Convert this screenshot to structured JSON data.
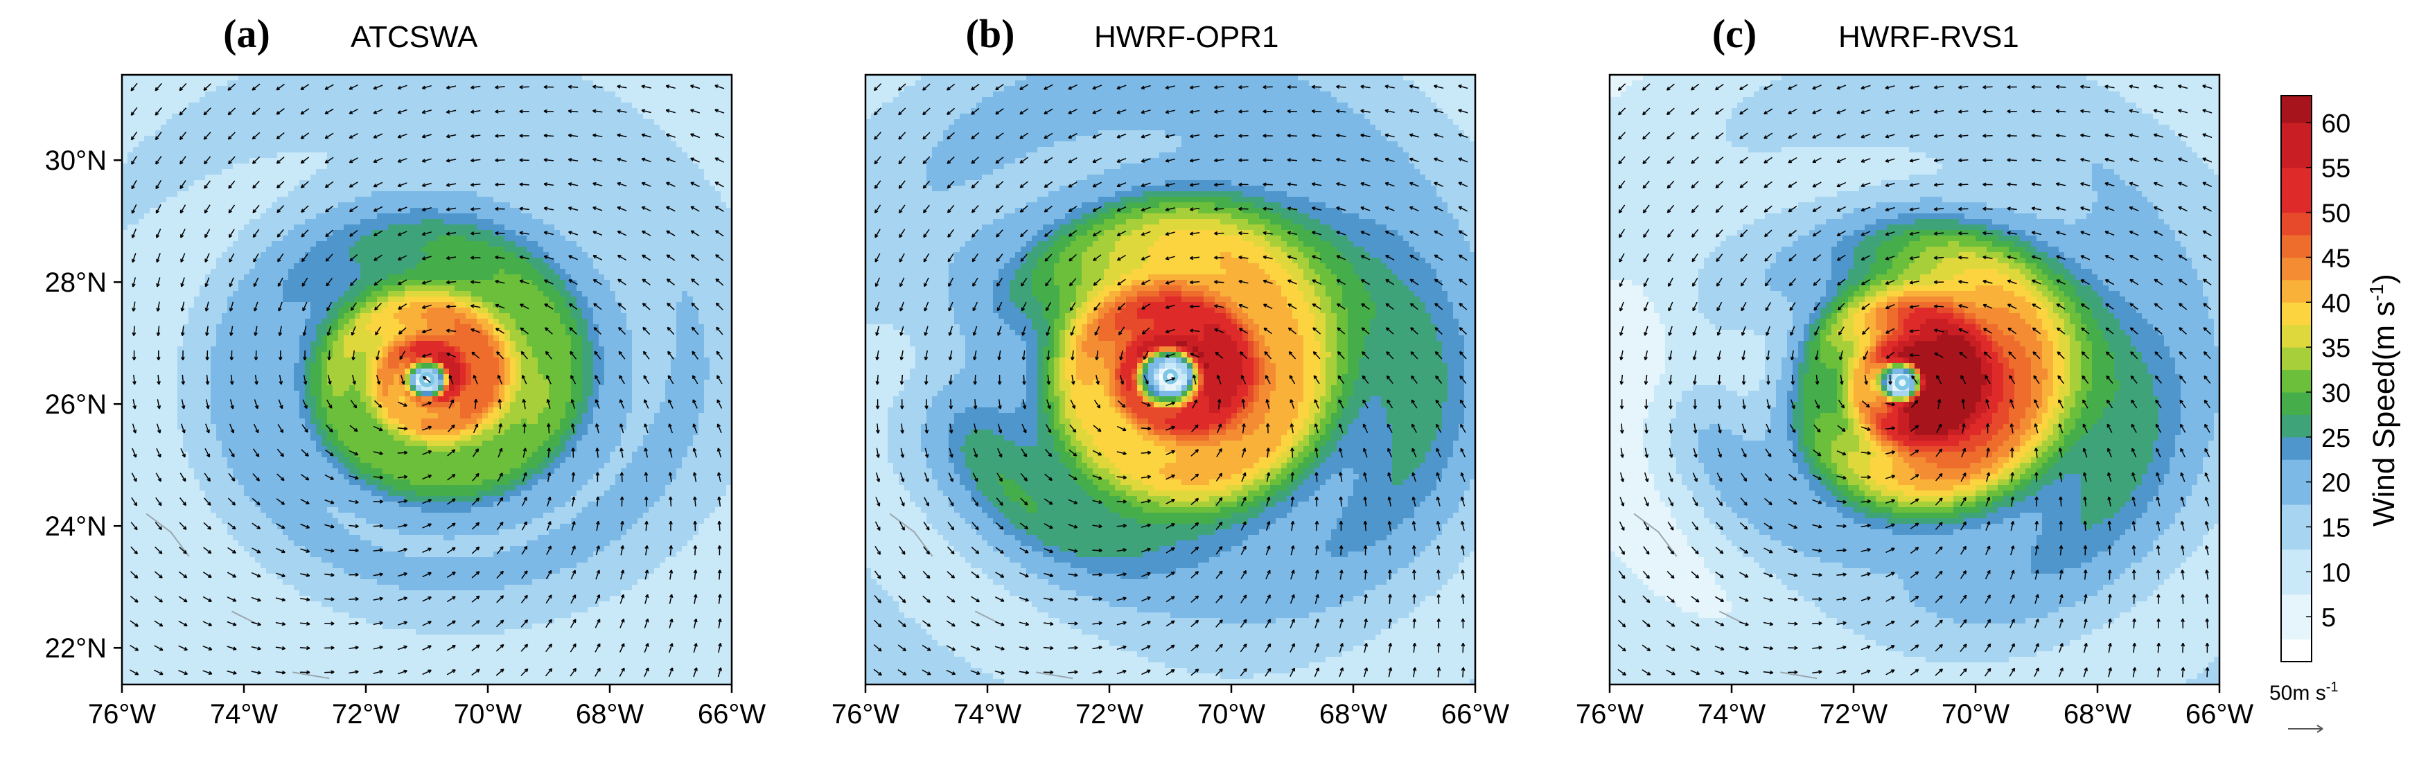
{
  "chart_data": [
    {
      "type": "heatmap",
      "panel_letter": "(a)",
      "title": "ATCSWA",
      "xlim": [
        -76,
        -66
      ],
      "ylim": [
        21.4,
        31.4
      ],
      "x_ticks": [
        "76°W",
        "74°W",
        "72°W",
        "70°W",
        "68°W",
        "66°W"
      ],
      "y_ticks": [
        "30°N",
        "28°N",
        "26°N",
        "24°N",
        "22°N"
      ],
      "storm_center": {
        "lon": -71.0,
        "lat": 26.4
      },
      "max_wind": 50,
      "radius_of_max_wind_deg": 0.35,
      "inner_core_extent_deg": 1.9
    },
    {
      "type": "heatmap",
      "panel_letter": "(b)",
      "title": "HWRF-OPR1",
      "xlim": [
        -76,
        -66
      ],
      "ylim": [
        21.4,
        31.4
      ],
      "x_ticks": [
        "76°W",
        "74°W",
        "72°W",
        "70°W",
        "68°W",
        "66°W"
      ],
      "y_ticks": [],
      "storm_center": {
        "lon": -71.0,
        "lat": 26.45
      },
      "max_wind": 55,
      "radius_of_max_wind_deg": 0.55,
      "inner_core_extent_deg": 2.4
    },
    {
      "type": "heatmap",
      "panel_letter": "(c)",
      "title": "HWRF-RVS1",
      "xlim": [
        -76,
        -66
      ],
      "ylim": [
        21.4,
        31.4
      ],
      "x_ticks": [
        "76°W",
        "74°W",
        "72°W",
        "70°W",
        "68°W",
        "66°W"
      ],
      "y_ticks": [],
      "storm_center": {
        "lon": -71.2,
        "lat": 26.35
      },
      "max_wind": 62,
      "radius_of_max_wind_deg": 0.4,
      "inner_core_extent_deg": 1.8
    }
  ],
  "colorbar": {
    "label": "Wind Speed(m s",
    "label_exponent": "-1",
    "label_close": ")",
    "ticks": [
      "60",
      "55",
      "50",
      "45",
      "40",
      "35",
      "30",
      "25",
      "20",
      "15",
      "10",
      "5"
    ],
    "tick_values": [
      60,
      55,
      50,
      45,
      40,
      35,
      30,
      25,
      20,
      15,
      10,
      5
    ],
    "range": [
      0,
      63
    ],
    "levels": [
      {
        "min": 0,
        "color": "#ffffff"
      },
      {
        "min": 2.5,
        "color": "#e6f5fc"
      },
      {
        "min": 7.5,
        "color": "#c9e8f8"
      },
      {
        "min": 12.5,
        "color": "#a6d4f1"
      },
      {
        "min": 17.5,
        "color": "#7cb9e6"
      },
      {
        "min": 22.5,
        "color": "#4e96cc"
      },
      {
        "min": 25,
        "color": "#3fa37a"
      },
      {
        "min": 27.5,
        "color": "#46ad4b"
      },
      {
        "min": 30,
        "color": "#6cbf3a"
      },
      {
        "min": 32.5,
        "color": "#a7cf3a"
      },
      {
        "min": 35,
        "color": "#dfd83c"
      },
      {
        "min": 37.5,
        "color": "#fbd43f"
      },
      {
        "min": 40,
        "color": "#f9b13a"
      },
      {
        "min": 42.5,
        "color": "#f48c33"
      },
      {
        "min": 45,
        "color": "#ee6d2d"
      },
      {
        "min": 47.5,
        "color": "#e64a2b"
      },
      {
        "min": 50,
        "color": "#de2b2a"
      },
      {
        "min": 55,
        "color": "#c81e24"
      },
      {
        "min": 60,
        "color": "#a8141b"
      }
    ]
  },
  "vector_reference": {
    "label": "50m s",
    "label_exponent": "-1",
    "magnitude": 50
  },
  "colors": {
    "axis": "#000000",
    "arrow": "#000000",
    "coastline": "#9aa6ad"
  }
}
